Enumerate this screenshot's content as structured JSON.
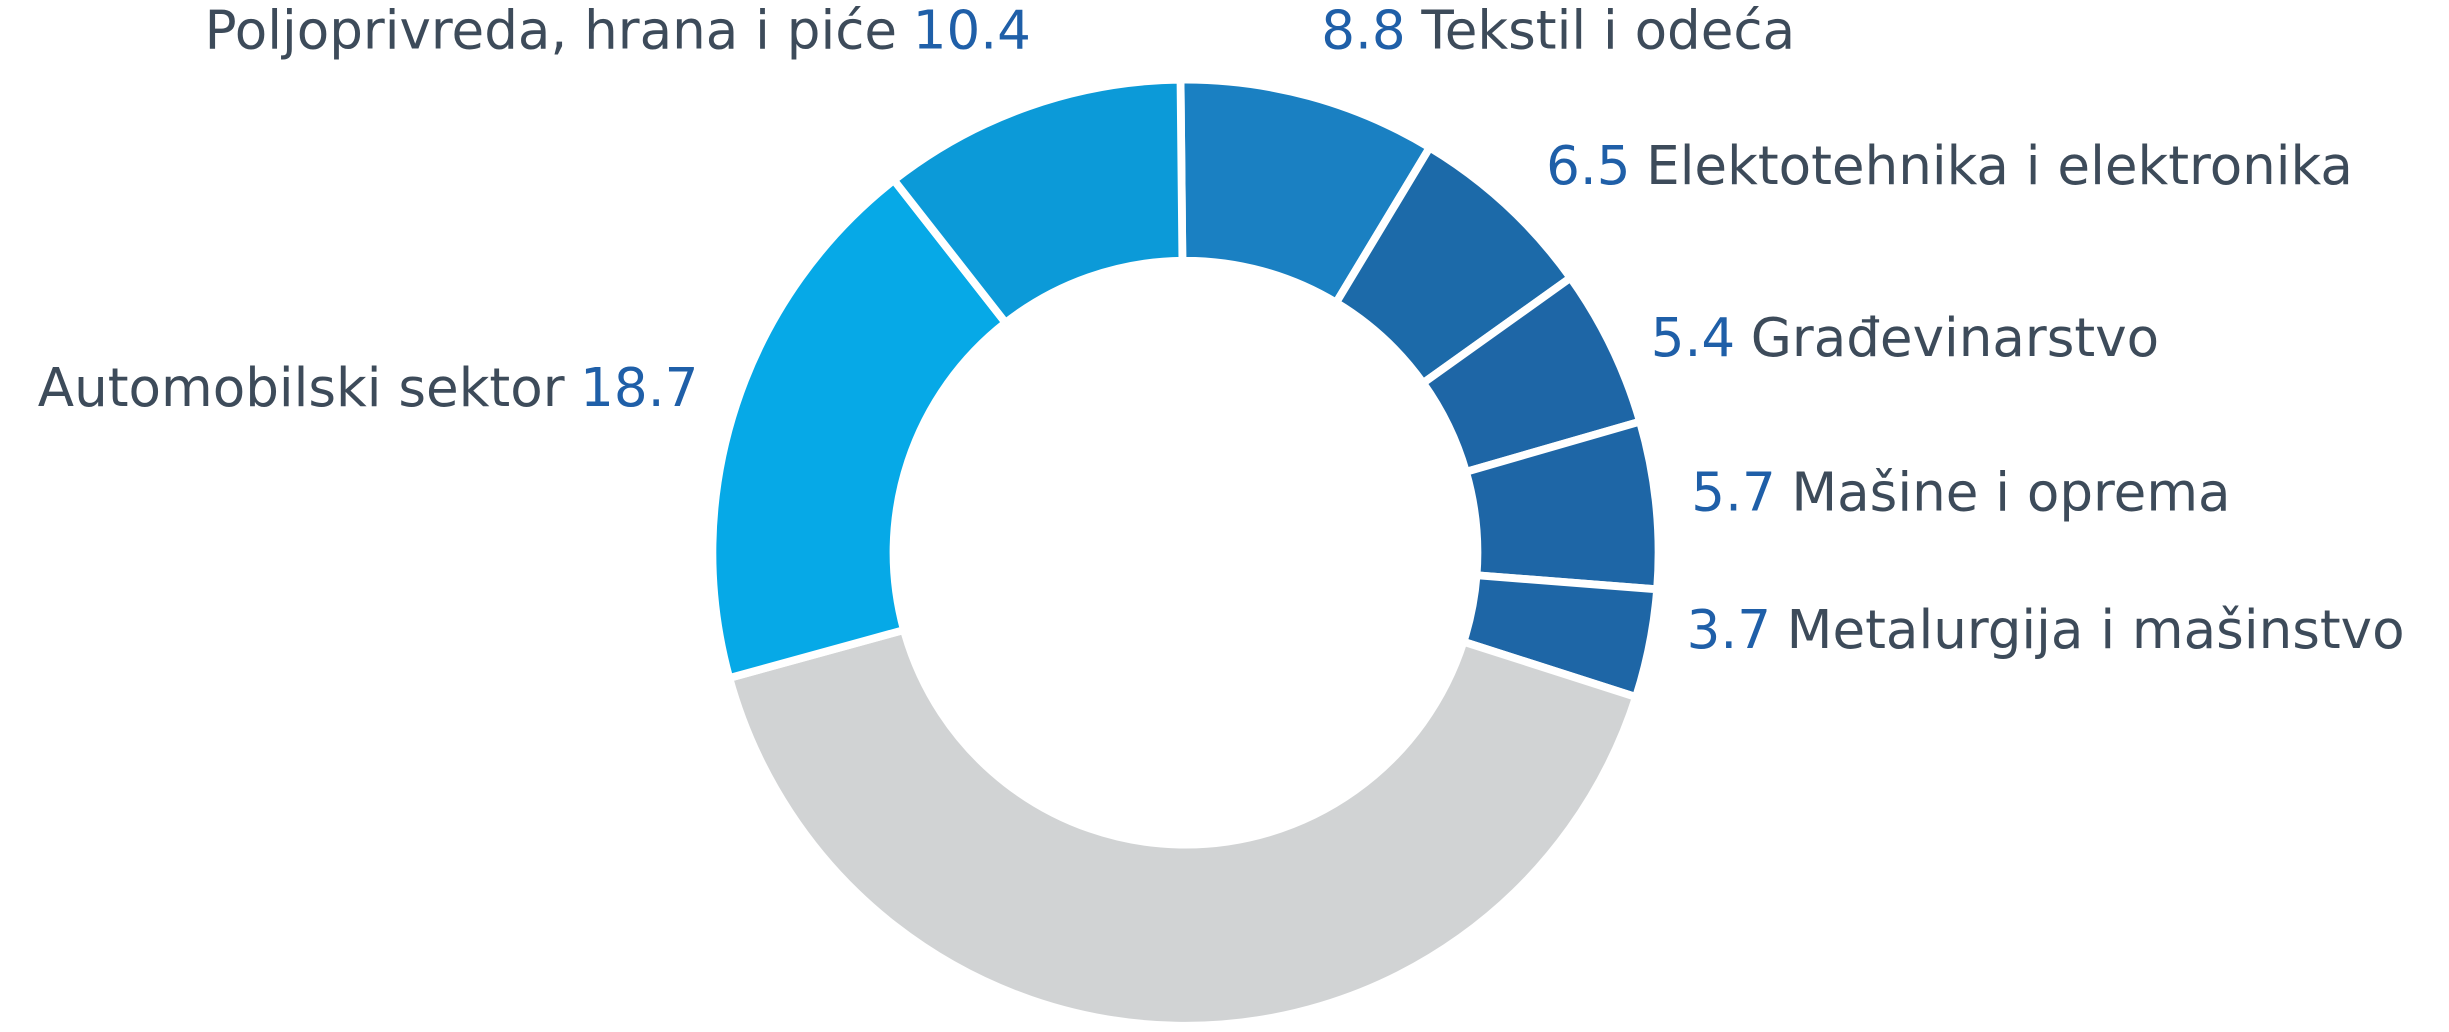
{
  "chart_data": {
    "type": "donut",
    "categories": [
      "Tekstil i odeća",
      "Elektotehnika i elektronika",
      "Građevinarstvo",
      "Mašine i oprema",
      "Metalurgija i mašinstvo",
      null,
      "Automobilski sektor",
      "Poljoprivreda, hrana i piće"
    ],
    "values": [
      8.8,
      6.5,
      5.4,
      5.7,
      3.7,
      40.8,
      18.7,
      10.4
    ],
    "colors": [
      "#1a80c2",
      "#1c6aa9",
      "#1e66a6",
      "#1e66a6",
      "#1e66a6",
      "#d1d3d4",
      "#06a9e7",
      "#0c9ad8"
    ]
  }
}
